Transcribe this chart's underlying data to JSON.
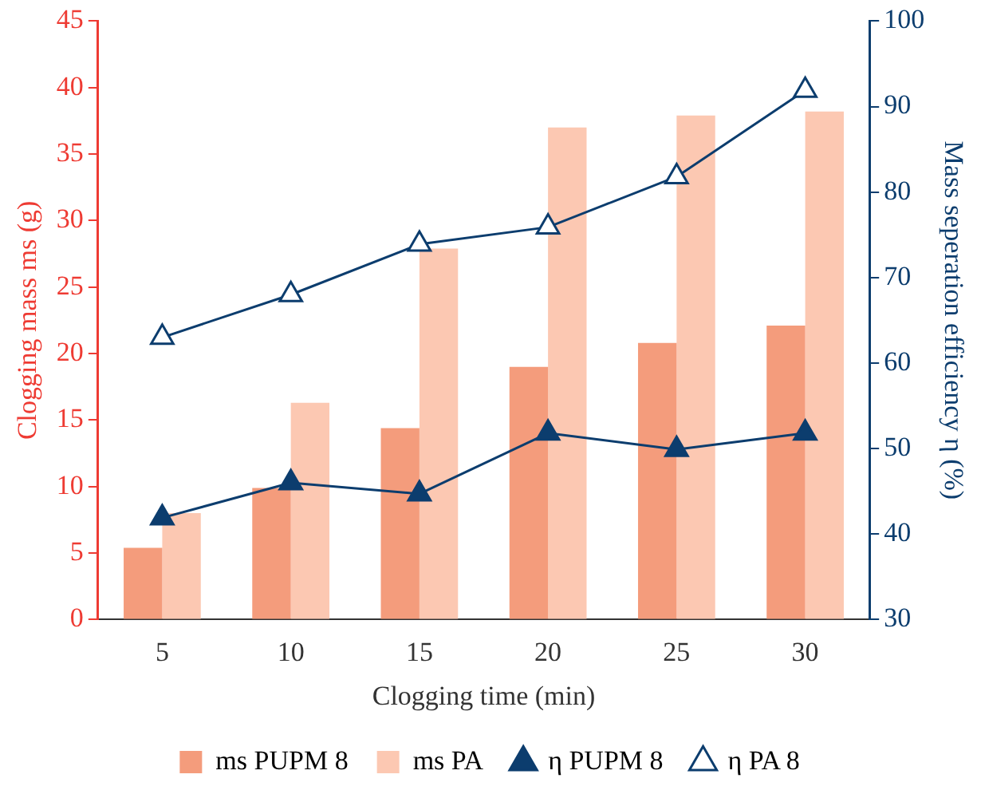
{
  "chart_data": {
    "type": "bar",
    "xlabel": "Clogging time (min)",
    "ylabel": "Clogging mass ms (g)",
    "y2label": "Mass seperation efficiency η (%)",
    "categories": [
      "5",
      "10",
      "15",
      "20",
      "25",
      "30"
    ],
    "series": [
      {
        "name": "ms PUPM 8",
        "color": "#f49c7c",
        "values": [
          5.4,
          9.9,
          14.4,
          19.0,
          20.8,
          22.1
        ]
      },
      {
        "name": "ms PA",
        "color": "#fcc8b2",
        "values": [
          8.0,
          16.3,
          27.9,
          37.0,
          37.9,
          38.2
        ]
      },
      {
        "name": "η PUPM 8",
        "type": "line",
        "axis": "y2",
        "color": "#0c3d6e",
        "marker": "triangle",
        "values": [
          41.9,
          46.0,
          44.7,
          51.8,
          49.9,
          51.8
        ]
      },
      {
        "name": "η PA 8",
        "type": "line",
        "axis": "y2",
        "color": "#0c3d6e",
        "marker": "triangle-open",
        "values": [
          63.0,
          68.0,
          73.9,
          75.9,
          81.8,
          91.9
        ]
      }
    ],
    "ylim": [
      0,
      45
    ],
    "yticks": [
      0,
      5,
      10,
      15,
      20,
      25,
      30,
      35,
      40,
      45
    ],
    "y2lim": [
      30,
      100
    ],
    "y2ticks": [
      30,
      40,
      50,
      60,
      70,
      80,
      90,
      100
    ],
    "grid": false,
    "legend": "bottom"
  }
}
